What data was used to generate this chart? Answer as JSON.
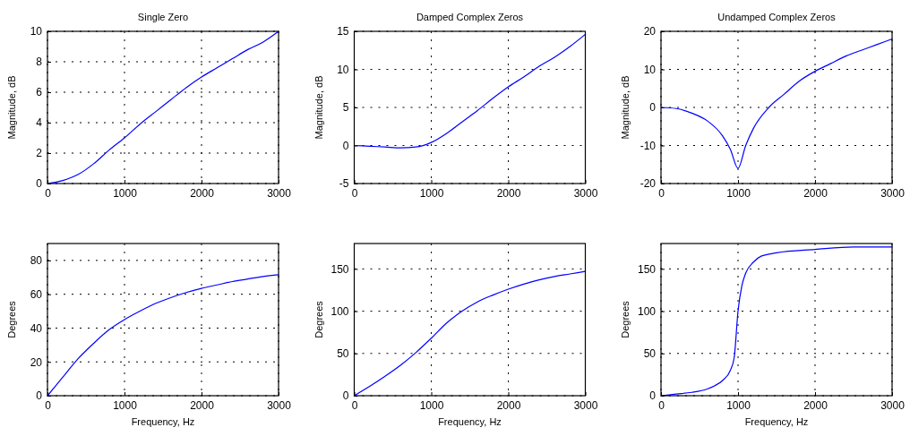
{
  "chart_data": [
    {
      "type": "line",
      "title": "Single Zero",
      "ylabel": "Magnitude, dB",
      "xlim": [
        0,
        3000
      ],
      "xticks": [
        0,
        1000,
        2000,
        3000
      ],
      "ylim": [
        0,
        10
      ],
      "yticks": [
        0,
        2,
        4,
        6,
        8,
        10
      ],
      "grid": true,
      "series": [
        {
          "color": "#0000ff",
          "x": [
            0,
            200,
            400,
            600,
            800,
            1000,
            1200,
            1400,
            1600,
            1800,
            2000,
            2200,
            2400,
            2600,
            2800,
            3000
          ],
          "values": [
            0,
            0.2,
            0.6,
            1.3,
            2.2,
            3.0,
            3.9,
            4.7,
            5.5,
            6.3,
            7.0,
            7.6,
            8.2,
            8.8,
            9.3,
            10.0
          ]
        }
      ]
    },
    {
      "type": "line",
      "title": "Damped Complex Zeros",
      "ylabel": "Magnitude, dB",
      "xlim": [
        0,
        3000
      ],
      "xticks": [
        0,
        1000,
        2000,
        3000
      ],
      "ylim": [
        -5,
        15
      ],
      "yticks": [
        -5,
        0,
        5,
        10,
        15
      ],
      "grid": true,
      "series": [
        {
          "color": "#0000ff",
          "x": [
            0,
            200,
            400,
            600,
            800,
            1000,
            1200,
            1400,
            1600,
            1800,
            2000,
            2200,
            2400,
            2600,
            2800,
            3000
          ],
          "values": [
            0,
            -0.1,
            -0.2,
            -0.3,
            -0.2,
            0.4,
            1.6,
            3.1,
            4.6,
            6.2,
            7.7,
            9.0,
            10.4,
            11.6,
            13.0,
            14.6
          ]
        }
      ]
    },
    {
      "type": "line",
      "title": "Undamped Complex Zeros",
      "ylabel": "Magnitude, dB",
      "xlim": [
        0,
        3000
      ],
      "xticks": [
        0,
        1000,
        2000,
        3000
      ],
      "ylim": [
        -20,
        20
      ],
      "yticks": [
        -20,
        -10,
        0,
        10,
        20
      ],
      "grid": true,
      "series": [
        {
          "color": "#0000ff",
          "x": [
            0,
            200,
            400,
            600,
            800,
            900,
            1000,
            1100,
            1200,
            1400,
            1600,
            1800,
            2000,
            2200,
            2400,
            2600,
            2800,
            3000
          ],
          "values": [
            0,
            -0.3,
            -1.5,
            -3.5,
            -7.5,
            -11,
            -16,
            -10,
            -5.5,
            0,
            3.5,
            7,
            9.5,
            11.5,
            13.5,
            15,
            16.5,
            18
          ]
        }
      ]
    },
    {
      "type": "line",
      "xlabel": "Frequency, Hz",
      "ylabel": "Degrees",
      "xlim": [
        0,
        3000
      ],
      "xticks": [
        0,
        1000,
        2000,
        3000
      ],
      "ylim": [
        0,
        90
      ],
      "yticks": [
        0,
        20,
        40,
        60,
        80
      ],
      "grid": true,
      "series": [
        {
          "color": "#0000ff",
          "x": [
            0,
            200,
            400,
            600,
            800,
            1000,
            1200,
            1400,
            1600,
            1800,
            2000,
            2200,
            2400,
            2600,
            2800,
            3000
          ],
          "values": [
            0,
            11,
            22,
            31,
            39,
            45,
            50,
            54.5,
            58,
            61,
            63.5,
            65.5,
            67.5,
            69,
            70.5,
            71.5
          ]
        }
      ]
    },
    {
      "type": "line",
      "xlabel": "Frequency, Hz",
      "ylabel": "Degrees",
      "xlim": [
        0,
        3000
      ],
      "xticks": [
        0,
        1000,
        2000,
        3000
      ],
      "ylim": [
        0,
        180
      ],
      "yticks": [
        0,
        50,
        100,
        150
      ],
      "grid": true,
      "series": [
        {
          "color": "#0000ff",
          "x": [
            0,
            200,
            400,
            600,
            800,
            1000,
            1200,
            1400,
            1600,
            1800,
            2000,
            2200,
            2400,
            2600,
            2800,
            3000
          ],
          "values": [
            0,
            11,
            23,
            36,
            51,
            68,
            86,
            100,
            111,
            119,
            126,
            132,
            137,
            141,
            144,
            147
          ]
        }
      ]
    },
    {
      "type": "line",
      "xlabel": "Frequency, Hz",
      "ylabel": "Degrees",
      "xlim": [
        0,
        3000
      ],
      "xticks": [
        0,
        1000,
        2000,
        3000
      ],
      "ylim": [
        0,
        180
      ],
      "yticks": [
        0,
        50,
        100,
        150
      ],
      "grid": true,
      "series": [
        {
          "color": "#0000ff",
          "x": [
            0,
            200,
            400,
            600,
            700,
            800,
            900,
            950,
            1000,
            1050,
            1100,
            1200,
            1300,
            1500,
            2000,
            2500,
            3000
          ],
          "values": [
            0,
            2,
            4,
            8,
            12,
            18,
            30,
            45,
            100,
            130,
            145,
            158,
            165,
            169,
            173,
            176,
            176
          ]
        }
      ]
    }
  ]
}
